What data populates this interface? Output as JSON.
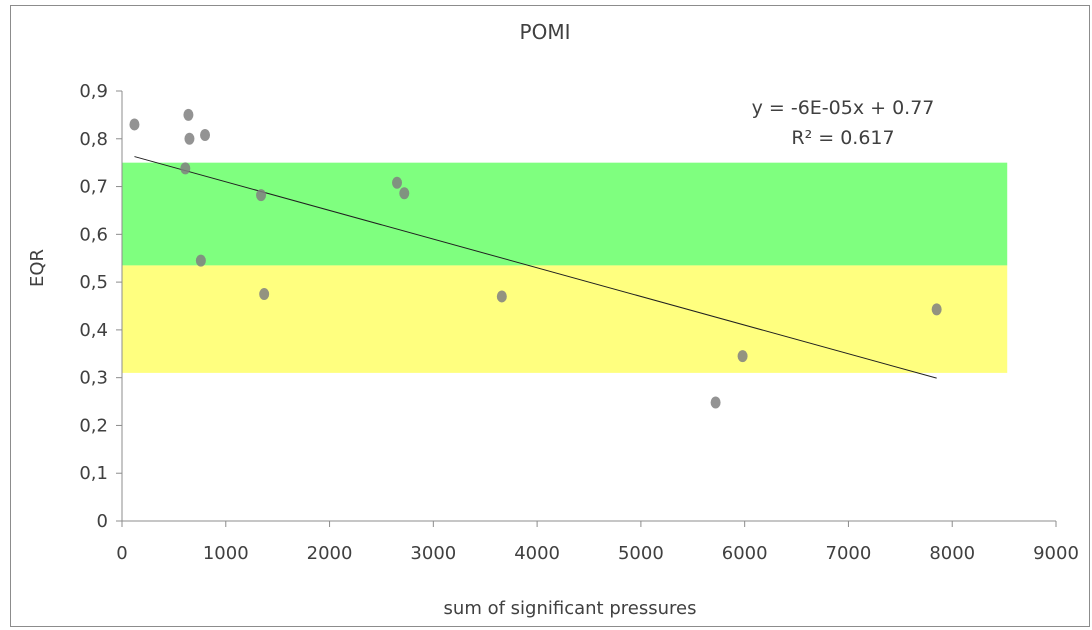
{
  "chart_data": {
    "type": "scatter",
    "title": "POMI",
    "xlabel": "sum of significant pressures",
    "ylabel": "EQR",
    "xlim": [
      0,
      9000
    ],
    "ylim": [
      0,
      0.9
    ],
    "x_ticks": [
      "0",
      "1000",
      "2000",
      "3000",
      "4000",
      "5000",
      "6000",
      "7000",
      "8000",
      "9000"
    ],
    "y_ticks": [
      "0",
      "0,1",
      "0,2",
      "0,3",
      "0,4",
      "0,5",
      "0,6",
      "0,7",
      "0,8",
      "0,9"
    ],
    "x_tick_values": [
      0,
      1000,
      2000,
      3000,
      4000,
      5000,
      6000,
      7000,
      8000,
      9000
    ],
    "y_tick_values": [
      0,
      0.1,
      0.2,
      0.3,
      0.4,
      0.5,
      0.6,
      0.7,
      0.8,
      0.9
    ],
    "grid": false,
    "bands": [
      {
        "name": "",
        "y_from": 0.535,
        "y_to": 0.75,
        "x_from": 0,
        "x_to": 8530,
        "color": "#00ff00",
        "opacity": 0.5
      },
      {
        "name": "",
        "y_from": 0.31,
        "y_to": 0.535,
        "x_from": 0,
        "x_to": 8530,
        "color": "#ffff00",
        "opacity": 0.5
      }
    ],
    "points": [
      {
        "x": 120,
        "y": 0.83
      },
      {
        "x": 640,
        "y": 0.85
      },
      {
        "x": 650,
        "y": 0.8
      },
      {
        "x": 800,
        "y": 0.808
      },
      {
        "x": 610,
        "y": 0.738
      },
      {
        "x": 760,
        "y": 0.545
      },
      {
        "x": 1340,
        "y": 0.682
      },
      {
        "x": 1370,
        "y": 0.475
      },
      {
        "x": 2650,
        "y": 0.708
      },
      {
        "x": 2720,
        "y": 0.686
      },
      {
        "x": 3660,
        "y": 0.47
      },
      {
        "x": 5720,
        "y": 0.248
      },
      {
        "x": 5980,
        "y": 0.345
      },
      {
        "x": 7850,
        "y": 0.443
      }
    ],
    "point_color": "#808080",
    "trendline": {
      "slope": -6e-05,
      "intercept": 0.77,
      "x_from": 120,
      "x_to": 7850,
      "equation_label": "y = -6E-05x + 0.77",
      "r2_label": "R² = 0.617",
      "color": "#202020"
    }
  }
}
